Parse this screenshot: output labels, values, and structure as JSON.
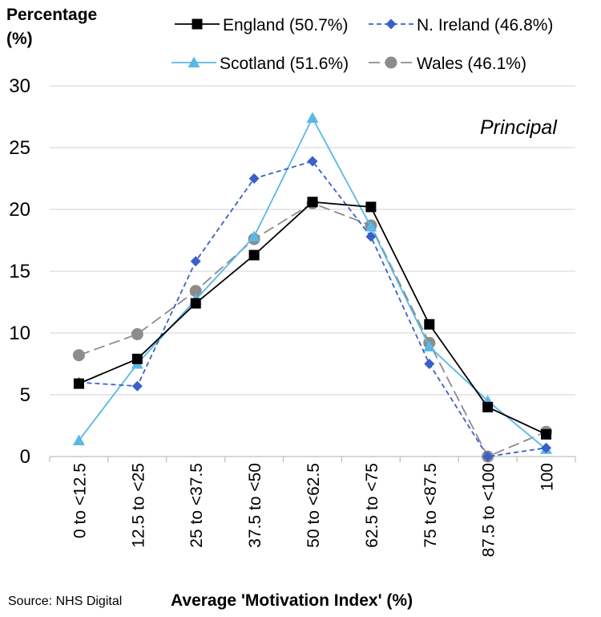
{
  "chart_data": {
    "type": "line",
    "ylabel": "Percentage (%)",
    "xlabel": "Average 'Motivation Index' (%)",
    "annotation": "Principal",
    "source": "Source: NHS Digital",
    "categories": [
      "0 to <12.5",
      "12.5 to <25",
      "25 to <37.5",
      "37.5 to <50",
      "50 to <62.5",
      "62.5 to <75",
      "75 to <87.5",
      "87.5 to <100",
      "100"
    ],
    "ylim": [
      0,
      30
    ],
    "yticks": [
      0,
      5,
      10,
      15,
      20,
      25,
      30
    ],
    "grid": true,
    "legend_position": "top",
    "series": [
      {
        "name": "England (50.7%)",
        "color": "#000000",
        "dash": "solid",
        "marker": "square",
        "values": [
          5.9,
          7.9,
          12.4,
          16.3,
          20.6,
          20.2,
          10.7,
          4.0,
          1.8
        ]
      },
      {
        "name": "N. Ireland (46.8%)",
        "color": "#3a5fc8",
        "dash": "dashed",
        "marker": "diamond",
        "values": [
          6.0,
          5.7,
          15.8,
          22.5,
          23.9,
          17.8,
          7.5,
          0.0,
          0.7
        ]
      },
      {
        "name": "Scotland (51.6%)",
        "color": "#5ab8e6",
        "dash": "solid",
        "marker": "triangle",
        "values": [
          1.3,
          7.5,
          12.7,
          17.8,
          27.4,
          18.6,
          8.9,
          4.5,
          0.6
        ]
      },
      {
        "name": "Wales (46.1%)",
        "color": "#8c8c8c",
        "dash": "longdash",
        "marker": "circle",
        "values": [
          8.2,
          9.9,
          13.4,
          17.6,
          20.5,
          18.7,
          9.2,
          0.0,
          2.0
        ]
      }
    ]
  }
}
